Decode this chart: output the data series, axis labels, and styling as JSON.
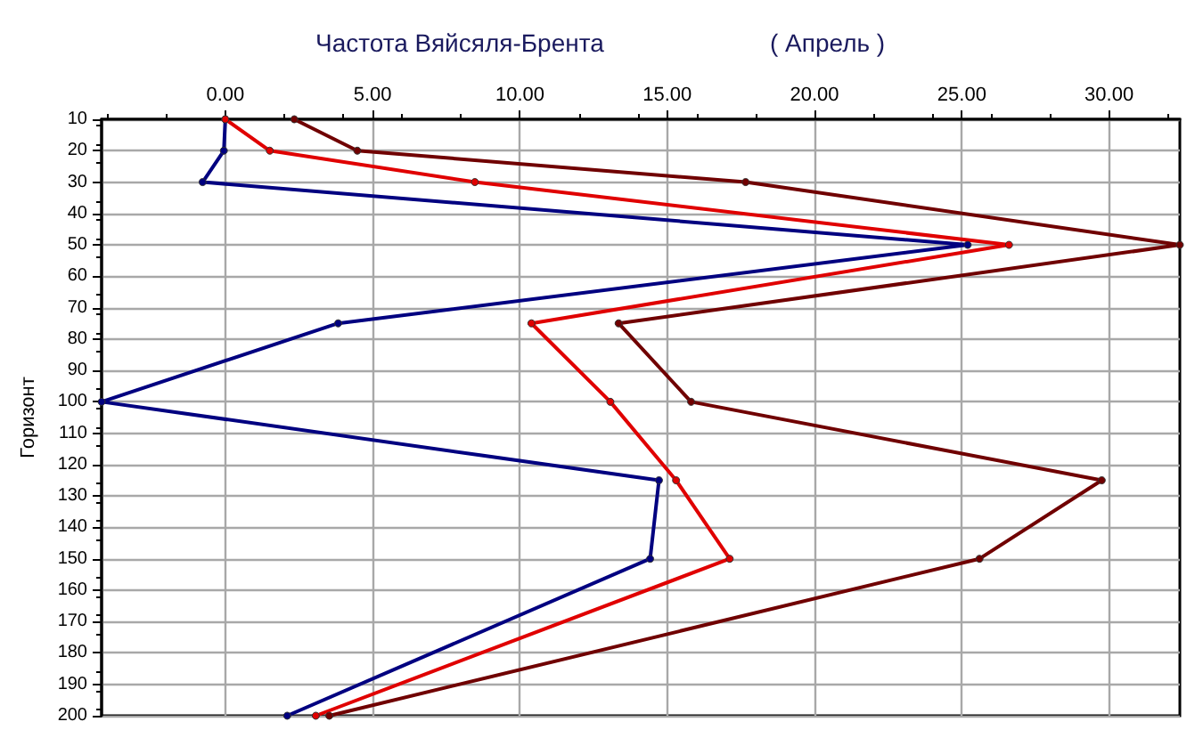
{
  "chart_data": {
    "type": "line",
    "title": "Частота Вяйсяля-Брента",
    "subtitle": "( Апрель )",
    "ylabel": "Горизонт",
    "series": [
      {
        "color": "#000080",
        "x": [
          0,
          -0.05,
          -0.77,
          25.2,
          3.83,
          -4.2,
          14.72,
          14.42,
          2.1
        ],
        "values": [
          10,
          20,
          30,
          50,
          75,
          100,
          125,
          150,
          200
        ]
      },
      {
        "color": "#e00000",
        "x": [
          0,
          1.51,
          8.47,
          26.6,
          10.39,
          13.07,
          15.3,
          17.12,
          3.07
        ],
        "values": [
          10,
          20,
          30,
          50,
          75,
          100,
          125,
          150,
          200
        ]
      },
      {
        "color": "#700000",
        "x": [
          2.34,
          4.48,
          17.66,
          32.4,
          13.35,
          15.81,
          29.75,
          25.6,
          3.53
        ],
        "values": [
          10,
          20,
          30,
          50,
          75,
          100,
          125,
          150,
          200
        ]
      }
    ],
    "xlim": [
      -4.2,
      32.4
    ],
    "xticks": [
      {
        "value": 0,
        "label": "0.00"
      },
      {
        "value": 5,
        "label": "5.00"
      },
      {
        "value": 10,
        "label": "10.00"
      },
      {
        "value": 15,
        "label": "15.00"
      },
      {
        "value": 20,
        "label": "20.00"
      },
      {
        "value": 25,
        "label": "25.00"
      },
      {
        "value": 30,
        "label": "30.00"
      }
    ],
    "ylim": [
      200,
      10
    ],
    "yticks": [
      10,
      20,
      30,
      40,
      50,
      60,
      70,
      80,
      90,
      100,
      110,
      120,
      130,
      140,
      150,
      160,
      170,
      180,
      190,
      200
    ],
    "grid": true,
    "marker": "circle",
    "line_style": "solid"
  }
}
